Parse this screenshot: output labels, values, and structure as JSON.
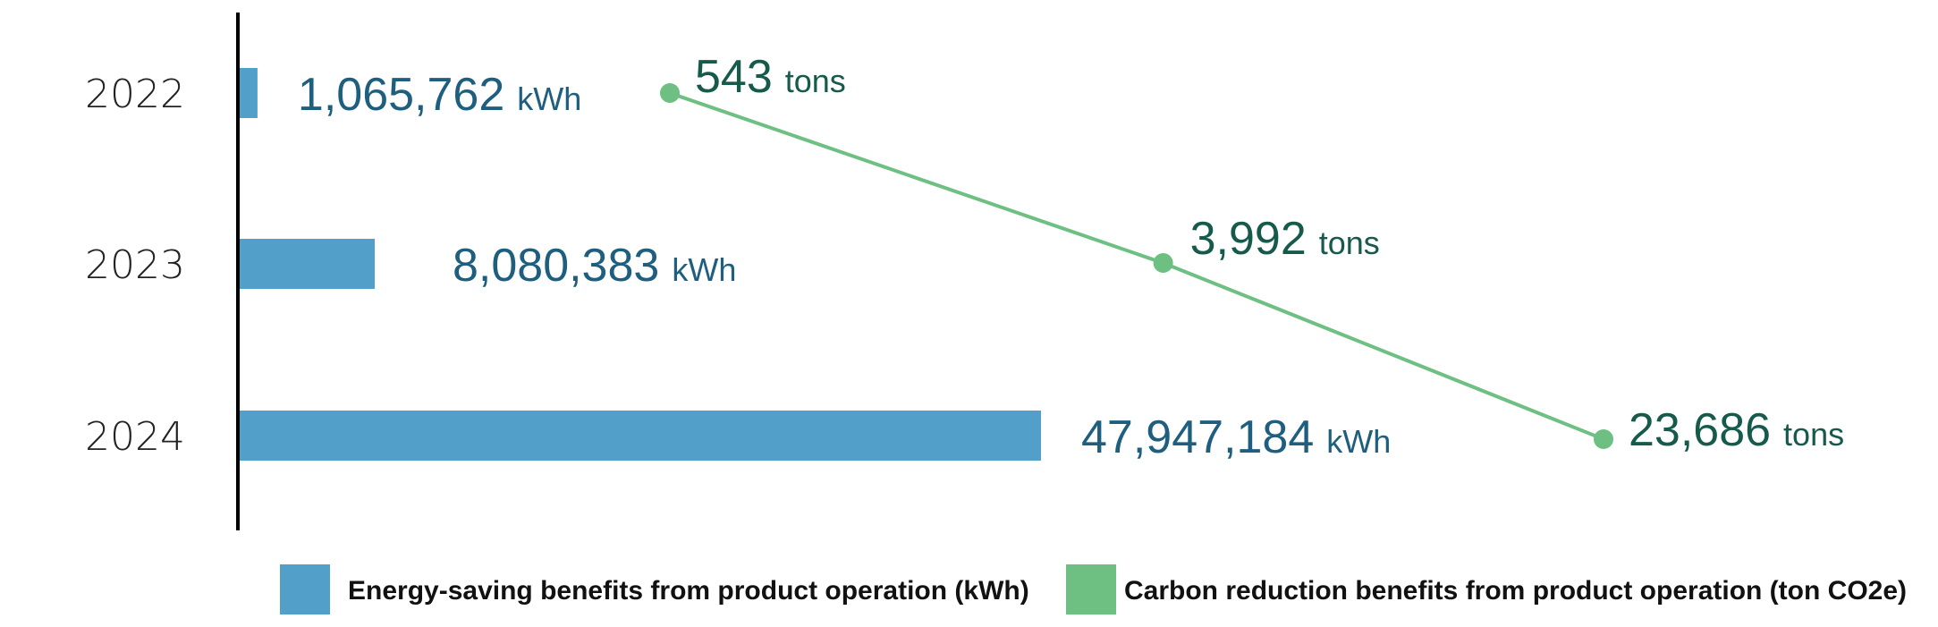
{
  "chart_data": {
    "type": "bar+line",
    "orientation": "horizontal",
    "categories": [
      "2022",
      "2023",
      "2024"
    ],
    "series": [
      {
        "name": "Energy-saving benefits from product operation (kWh)",
        "kind": "bar",
        "values": [
          1065762,
          8080383,
          47947184
        ],
        "labels": [
          "1,065,762",
          "8,080,383",
          "47,947,184"
        ],
        "unit": "kWh",
        "color": "#529fca",
        "label_color": "#1e5e7e"
      },
      {
        "name": "Carbon reduction benefits from product operation (ton CO2e)",
        "kind": "line",
        "values": [
          543,
          3992,
          23686
        ],
        "labels": [
          "543",
          "3,992",
          "23,686"
        ],
        "unit": "tons",
        "color": "#6ebf82",
        "label_color": "#165a4c"
      }
    ],
    "legend_position": "bottom",
    "axis_color": "#000000"
  }
}
